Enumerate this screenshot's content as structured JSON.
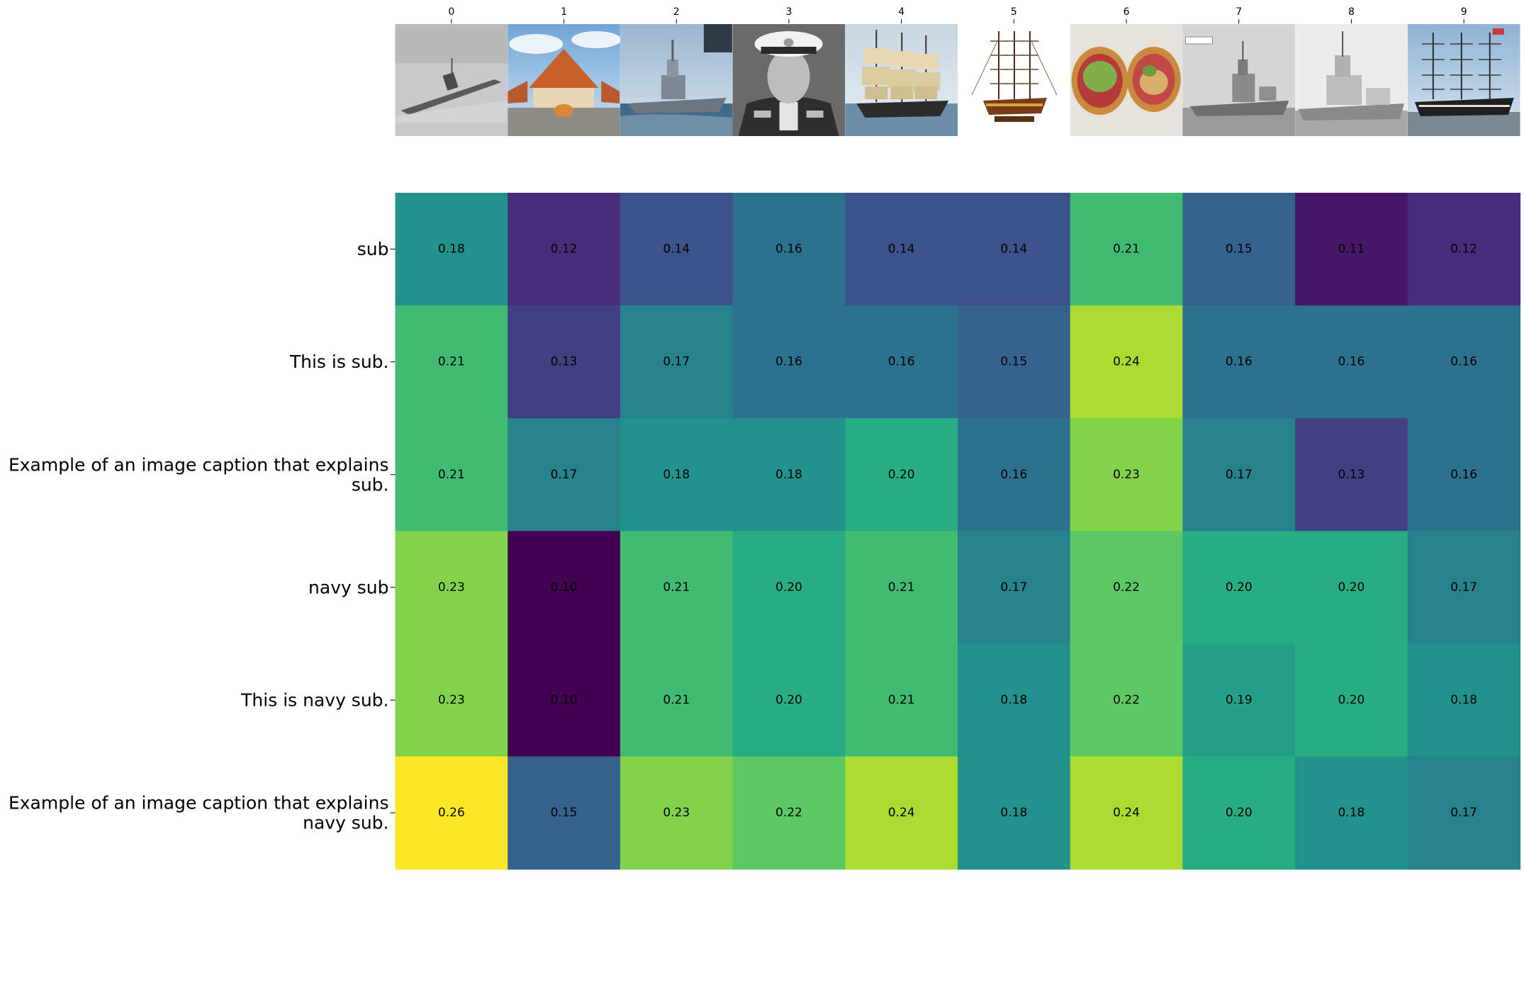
{
  "chart_data": {
    "type": "heatmap",
    "title": "",
    "xlabel": "",
    "ylabel": "",
    "colormap": "viridis",
    "vmin": 0.1,
    "vmax": 0.26,
    "x_tick_labels": [
      "0",
      "1",
      "2",
      "3",
      "4",
      "5",
      "6",
      "7",
      "8",
      "9"
    ],
    "y_tick_labels": [
      [
        "sub"
      ],
      [
        "This is sub."
      ],
      [
        "Example of an image caption that explains",
        "sub."
      ],
      [
        "navy sub"
      ],
      [
        "This is navy sub."
      ],
      [
        "Example of an image caption that explains",
        "navy sub."
      ]
    ],
    "thumbnails": [
      {
        "index": "0",
        "subject": "submarine at sea",
        "style": "grayscale"
      },
      {
        "index": "1",
        "subject": "building with orange peaked roof under blue sky",
        "style": "color"
      },
      {
        "index": "2",
        "subject": "grey naval destroyer at sea",
        "style": "color"
      },
      {
        "index": "3",
        "subject": "portrait of naval officer in white cap",
        "style": "grayscale"
      },
      {
        "index": "4",
        "subject": "tall sailing ship",
        "style": "color"
      },
      {
        "index": "5",
        "subject": "wooden model sailing ship on stand",
        "style": "color"
      },
      {
        "index": "6",
        "subject": "sandwich on paper",
        "style": "color"
      },
      {
        "index": "7",
        "subject": "warship in harbor",
        "style": "grayscale"
      },
      {
        "index": "8",
        "subject": "frigate at sea",
        "style": "grayscale"
      },
      {
        "index": "9",
        "subject": "historic ship of the line",
        "style": "color"
      }
    ],
    "values": [
      [
        0.18,
        0.12,
        0.14,
        0.16,
        0.14,
        0.14,
        0.21,
        0.15,
        0.11,
        0.12
      ],
      [
        0.21,
        0.13,
        0.17,
        0.16,
        0.16,
        0.15,
        0.24,
        0.16,
        0.16,
        0.16
      ],
      [
        0.21,
        0.17,
        0.18,
        0.18,
        0.2,
        0.16,
        0.23,
        0.17,
        0.13,
        0.16
      ],
      [
        0.23,
        0.1,
        0.21,
        0.2,
        0.21,
        0.17,
        0.22,
        0.2,
        0.2,
        0.17
      ],
      [
        0.23,
        0.1,
        0.21,
        0.2,
        0.21,
        0.18,
        0.22,
        0.19,
        0.2,
        0.18
      ],
      [
        0.26,
        0.15,
        0.23,
        0.22,
        0.24,
        0.18,
        0.24,
        0.2,
        0.18,
        0.17
      ]
    ],
    "label_format": "0.00",
    "grid": false,
    "colorbar": false
  }
}
